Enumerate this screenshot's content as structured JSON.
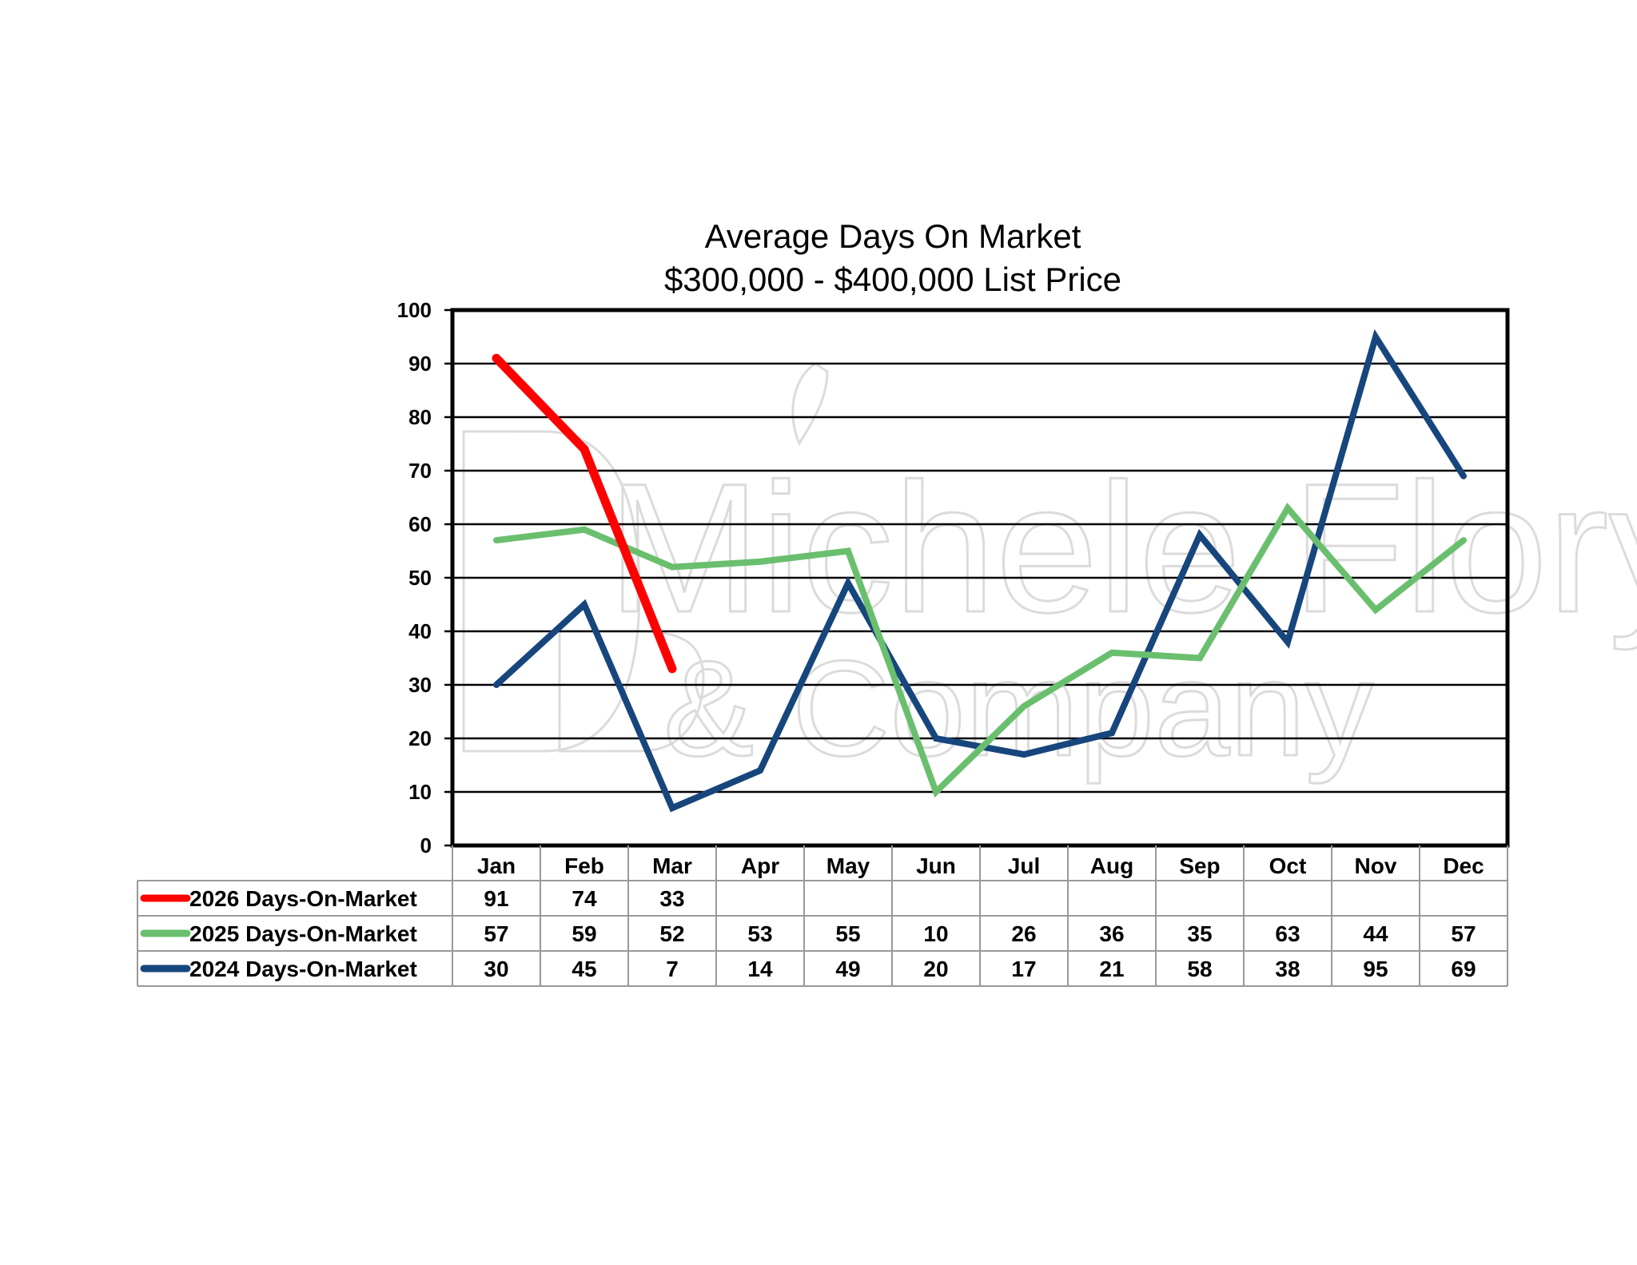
{
  "chart_data": {
    "type": "line",
    "title": "Average Days On Market",
    "subtitle": "$300,000 - $400,000 List Price",
    "xlabel": "",
    "ylabel": "",
    "ylim": [
      0,
      100
    ],
    "yticks": [
      0,
      10,
      20,
      30,
      40,
      50,
      60,
      70,
      80,
      90,
      100
    ],
    "grid": true,
    "legend": "data-table",
    "categories": [
      "Jan",
      "Feb",
      "Mar",
      "Apr",
      "May",
      "Jun",
      "Jul",
      "Aug",
      "Sep",
      "Oct",
      "Nov",
      "Dec"
    ],
    "series": [
      {
        "name": "2026 Days-On-Market",
        "color": "#ff0000",
        "values": [
          91,
          74,
          33,
          null,
          null,
          null,
          null,
          null,
          null,
          null,
          null,
          null
        ]
      },
      {
        "name": "2025 Days-On-Market",
        "color": "#6abf6e",
        "values": [
          57,
          59,
          52,
          53,
          55,
          10,
          26,
          36,
          35,
          63,
          44,
          57
        ]
      },
      {
        "name": "2024 Days-On-Market",
        "color": "#17467d",
        "values": [
          30,
          45,
          7,
          14,
          49,
          20,
          17,
          21,
          58,
          38,
          95,
          69
        ]
      }
    ],
    "watermark": {
      "line1": "Michele Flory",
      "line2": "& Company"
    }
  }
}
